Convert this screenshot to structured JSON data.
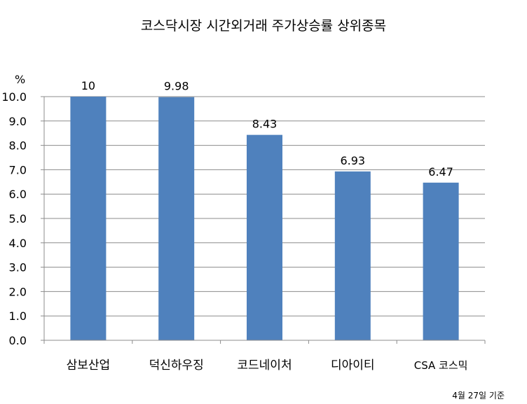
{
  "chart_data": {
    "type": "bar",
    "title": "코스닥시장 시간외거래  주가상승률 상위종목",
    "ylabel": "%",
    "categories": [
      "삼보산업",
      "덕신하우징",
      "코드네이처",
      "디아이티",
      "CSA 코스믹"
    ],
    "series": [
      {
        "values": [
          10,
          9.98,
          8.43,
          6.93,
          6.47
        ]
      }
    ],
    "data_labels": [
      "10",
      "9.98",
      "8.43",
      "6.93",
      "6.47"
    ],
    "ylim": [
      0,
      10
    ],
    "yticks": [
      0,
      1,
      2,
      3,
      4,
      5,
      6,
      7,
      8,
      9,
      10
    ],
    "ytick_labels": [
      "0.0",
      "1.0",
      "2.0",
      "3.0",
      "4.0",
      "5.0",
      "6.0",
      "7.0",
      "8.0",
      "9.0",
      "10.0"
    ],
    "grid": true,
    "legend": "none",
    "bar_color": "#4F81BD",
    "note": "4월 27일 기준"
  }
}
